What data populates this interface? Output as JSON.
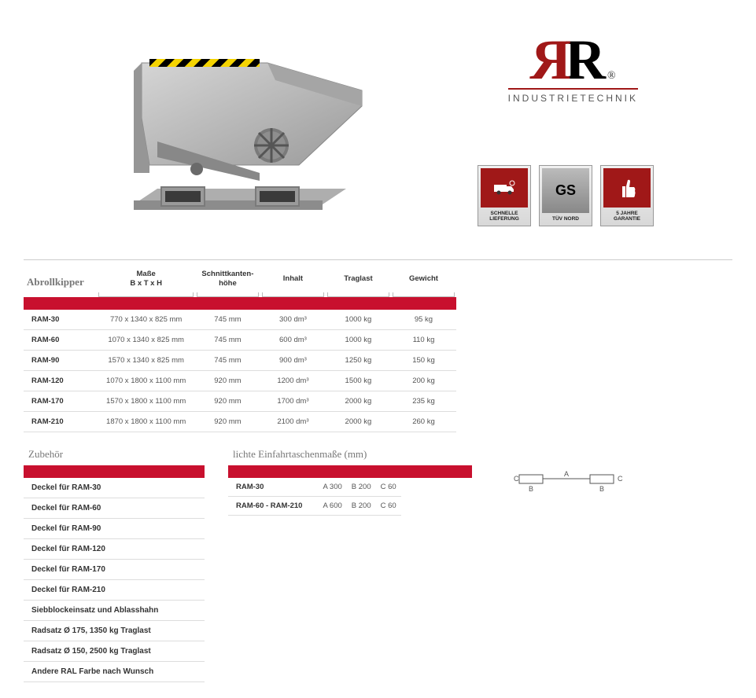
{
  "brand": {
    "subtitle": "INDUSTRIETECHNIK"
  },
  "badges": {
    "b1_label": "SCHNELLE LIEFERUNG",
    "b2_top": "GS",
    "b2_label": "TÜV NORD",
    "b3_label": "5 JAHRE GARANTIE"
  },
  "main_table": {
    "title": "Abrollkipper",
    "headers": {
      "h1": "Maße\nB x T x H",
      "h2": "Schnittkanten-\nhöhe",
      "h3": "Inhalt",
      "h4": "Traglast",
      "h5": "Gewicht"
    },
    "rows": [
      {
        "model": "RAM-30",
        "dim": "770 x 1340 x 825 mm",
        "ht": "745 mm",
        "vol": "300 dm³",
        "load": "1000 kg",
        "wt": "95 kg"
      },
      {
        "model": "RAM-60",
        "dim": "1070 x 1340 x 825 mm",
        "ht": "745 mm",
        "vol": "600 dm³",
        "load": "1000 kg",
        "wt": "110 kg"
      },
      {
        "model": "RAM-90",
        "dim": "1570 x 1340 x 825 mm",
        "ht": "745 mm",
        "vol": "900 dm³",
        "load": "1250 kg",
        "wt": "150 kg"
      },
      {
        "model": "RAM-120",
        "dim": "1070 x 1800 x 1100 mm",
        "ht": "920 mm",
        "vol": "1200 dm³",
        "load": "1500 kg",
        "wt": "200 kg"
      },
      {
        "model": "RAM-170",
        "dim": "1570 x 1800 x 1100 mm",
        "ht": "920 mm",
        "vol": "1700 dm³",
        "load": "2000 kg",
        "wt": "235 kg"
      },
      {
        "model": "RAM-210",
        "dim": "1870 x 1800 x 1100 mm",
        "ht": "920 mm",
        "vol": "2100 dm³",
        "load": "2000 kg",
        "wt": "260 kg"
      }
    ]
  },
  "zubehor": {
    "title": "Zubehör",
    "items": [
      "Deckel für RAM-30",
      "Deckel für RAM-60",
      "Deckel für RAM-90",
      "Deckel für RAM-120",
      "Deckel für RAM-170",
      "Deckel für RAM-210",
      "Siebblockeinsatz und Ablasshahn",
      "Radsatz Ø 175, 1350 kg Traglast",
      "Radsatz Ø 150, 2500 kg Traglast",
      "Andere RAL Farbe nach Wunsch"
    ]
  },
  "pocket": {
    "title": "lichte Einfahrtaschenmaße (mm)",
    "rows": [
      {
        "model": "RAM-30",
        "a": "A 300",
        "b": "B 200",
        "c": "C 60"
      },
      {
        "model": "RAM-60 - RAM-210",
        "a": "A 600",
        "b": "B 200",
        "c": "C 60"
      }
    ],
    "diagram_labels": {
      "a": "A",
      "b": "B",
      "c": "C"
    }
  },
  "colors": {
    "red": "#c8102e",
    "brand_red": "#a01818",
    "grey_light": "#dddddd",
    "grey_text": "#555555"
  }
}
